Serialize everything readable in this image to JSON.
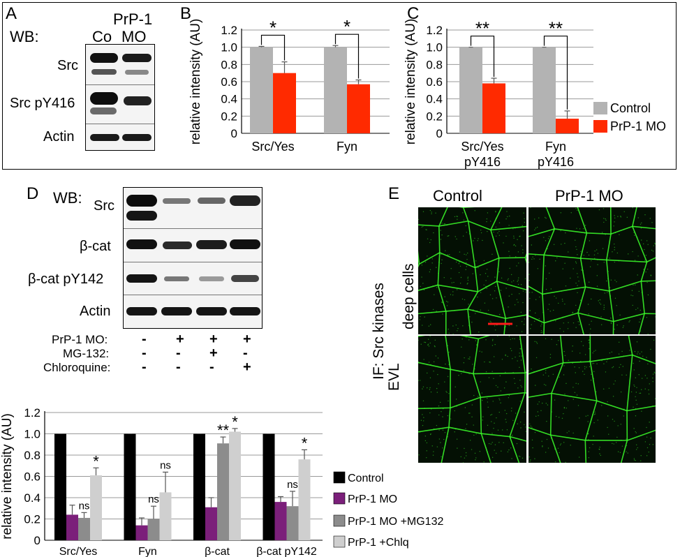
{
  "panels": {
    "a": "A",
    "b": "B",
    "c": "C",
    "d": "D",
    "e": "E"
  },
  "blot_a": {
    "wb_label": "WB:",
    "lane_labels": [
      "Co",
      "PrP-1\nMO"
    ],
    "lane_label_co": "Co",
    "lane_label_mo_1": "PrP-1",
    "lane_label_mo_2": "MO",
    "rows": [
      "Src",
      "Src pY416",
      "Actin"
    ]
  },
  "blot_d": {
    "wb_label": "WB:",
    "rows": [
      "Src",
      "β-cat",
      "β-cat pY142",
      "Actin"
    ],
    "treatments": [
      {
        "label": "PrP-1 MO:",
        "marks": [
          "-",
          "+",
          "+",
          "+"
        ]
      },
      {
        "label": "MG-132:",
        "marks": [
          "-",
          "-",
          "+",
          "-"
        ]
      },
      {
        "label": "Chloroquine:",
        "marks": [
          "-",
          "-",
          "-",
          "+"
        ]
      }
    ]
  },
  "if_panel": {
    "col_labels": [
      "Control",
      "PrP-1 MO"
    ],
    "side_label_top": "IF: Src kinases",
    "row_labels": [
      "deep cells",
      "EVL"
    ]
  },
  "colors": {
    "control_gray": "#b3b3b3",
    "mo_red": "#ff2a00",
    "black": "#000000",
    "purple": "#7b1f7a",
    "mg_gray": "#8c8c8c",
    "chlq_gray": "#cfcfcf",
    "if_green": "#3cff2a"
  },
  "chart_data": [
    {
      "id": "B",
      "type": "bar",
      "categories": [
        "Src/Yes",
        "Fyn"
      ],
      "series": [
        {
          "name": "Control",
          "values": [
            1.0,
            1.0
          ],
          "errors": [
            0.01,
            0.02
          ],
          "color": "#b3b3b3"
        },
        {
          "name": "PrP-1 MO",
          "values": [
            0.7,
            0.57
          ],
          "errors": [
            0.13,
            0.05
          ],
          "color": "#ff2a00"
        }
      ],
      "significance": [
        "*",
        "*"
      ],
      "ylabel": "relative intensity (AU)",
      "ylim": [
        0,
        1.2
      ],
      "yticks": [
        "0",
        "0.2",
        "0.4",
        "0.6",
        "0.8",
        "1.0",
        "1.2"
      ],
      "grid": true
    },
    {
      "id": "C",
      "type": "bar",
      "categories": [
        "Src/Yes\npY416",
        "Fyn\npY416"
      ],
      "category_lines": [
        [
          "Src/Yes",
          "pY416"
        ],
        [
          "Fyn",
          "pY416"
        ]
      ],
      "series": [
        {
          "name": "Control",
          "values": [
            1.0,
            1.0
          ],
          "errors": [
            0.0,
            0.0
          ],
          "color": "#b3b3b3"
        },
        {
          "name": "PrP-1 MO",
          "values": [
            0.58,
            0.17
          ],
          "errors": [
            0.06,
            0.09
          ],
          "color": "#ff2a00"
        }
      ],
      "significance": [
        "**",
        "**"
      ],
      "ylabel": "relative intensity (AU)",
      "ylim": [
        0,
        1.2
      ],
      "yticks": [
        "0",
        "0.2",
        "0.4",
        "0.6",
        "0.8",
        "1.0",
        "1.2"
      ],
      "grid": true,
      "legend": {
        "placement": "right",
        "entries": [
          "Control",
          "PrP-1 MO"
        ]
      }
    },
    {
      "id": "D",
      "type": "bar",
      "categories": [
        "Src/Yes",
        "Fyn",
        "β-cat",
        "β-cat pY142"
      ],
      "series": [
        {
          "name": "Control",
          "values": [
            1.0,
            1.0,
            1.0,
            1.0
          ],
          "errors": [
            0,
            0,
            0,
            0
          ],
          "color": "#000000"
        },
        {
          "name": "PrP-1 MO",
          "values": [
            0.24,
            0.14,
            0.31,
            0.36
          ],
          "errors": [
            0.09,
            0.07,
            0.09,
            0.05
          ],
          "color": "#7b1f7a"
        },
        {
          "name": "PrP-1 MO +MG132",
          "values": [
            0.21,
            0.2,
            0.91,
            0.32
          ],
          "errors": [
            0.05,
            0.12,
            0.06,
            0.14
          ],
          "color": "#8c8c8c"
        },
        {
          "name": "PrP-1 +Chlq",
          "values": [
            0.61,
            0.45,
            1.02,
            0.76
          ],
          "errors": [
            0.07,
            0.19,
            0.03,
            0.09
          ],
          "color": "#cfcfcf"
        }
      ],
      "annotations": [
        [
          "",
          "",
          "ns",
          "*"
        ],
        [
          "",
          "",
          "ns",
          "ns"
        ],
        [
          "",
          "",
          "**",
          "*"
        ],
        [
          "",
          "",
          "ns",
          "*"
        ]
      ],
      "ylabel": "relative intensity (AU)",
      "ylim": [
        0,
        1.2
      ],
      "yticks": [
        "0",
        "0.2",
        "0.4",
        "0.6",
        "0.8",
        "1.0",
        "1.2"
      ],
      "grid": true,
      "legend": {
        "placement": "right",
        "entries": [
          "Control",
          "PrP-1 MO",
          "PrP-1 MO +MG132",
          "PrP-1 +Chlq"
        ]
      }
    }
  ]
}
